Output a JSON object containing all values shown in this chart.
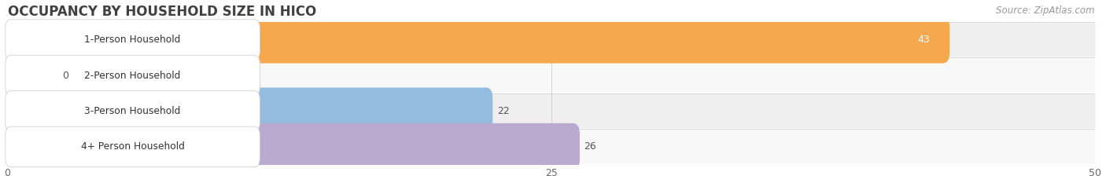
{
  "title": "OCCUPANCY BY HOUSEHOLD SIZE IN HICO",
  "source": "Source: ZipAtlas.com",
  "categories": [
    "1-Person Household",
    "2-Person Household",
    "3-Person Household",
    "4+ Person Household"
  ],
  "values": [
    43,
    0,
    22,
    26
  ],
  "bar_colors": [
    "#f5a84e",
    "#f0a0a8",
    "#93bce0",
    "#bbaad0"
  ],
  "row_bg_colors": [
    "#efefef",
    "#f8f8f8",
    "#efefef",
    "#f8f8f8"
  ],
  "background_color": "#ffffff",
  "xlim": [
    0,
    50
  ],
  "xticks": [
    0,
    25,
    50
  ],
  "title_fontsize": 12,
  "source_fontsize": 8.5,
  "figsize": [
    14.06,
    2.33
  ],
  "dpi": 100
}
